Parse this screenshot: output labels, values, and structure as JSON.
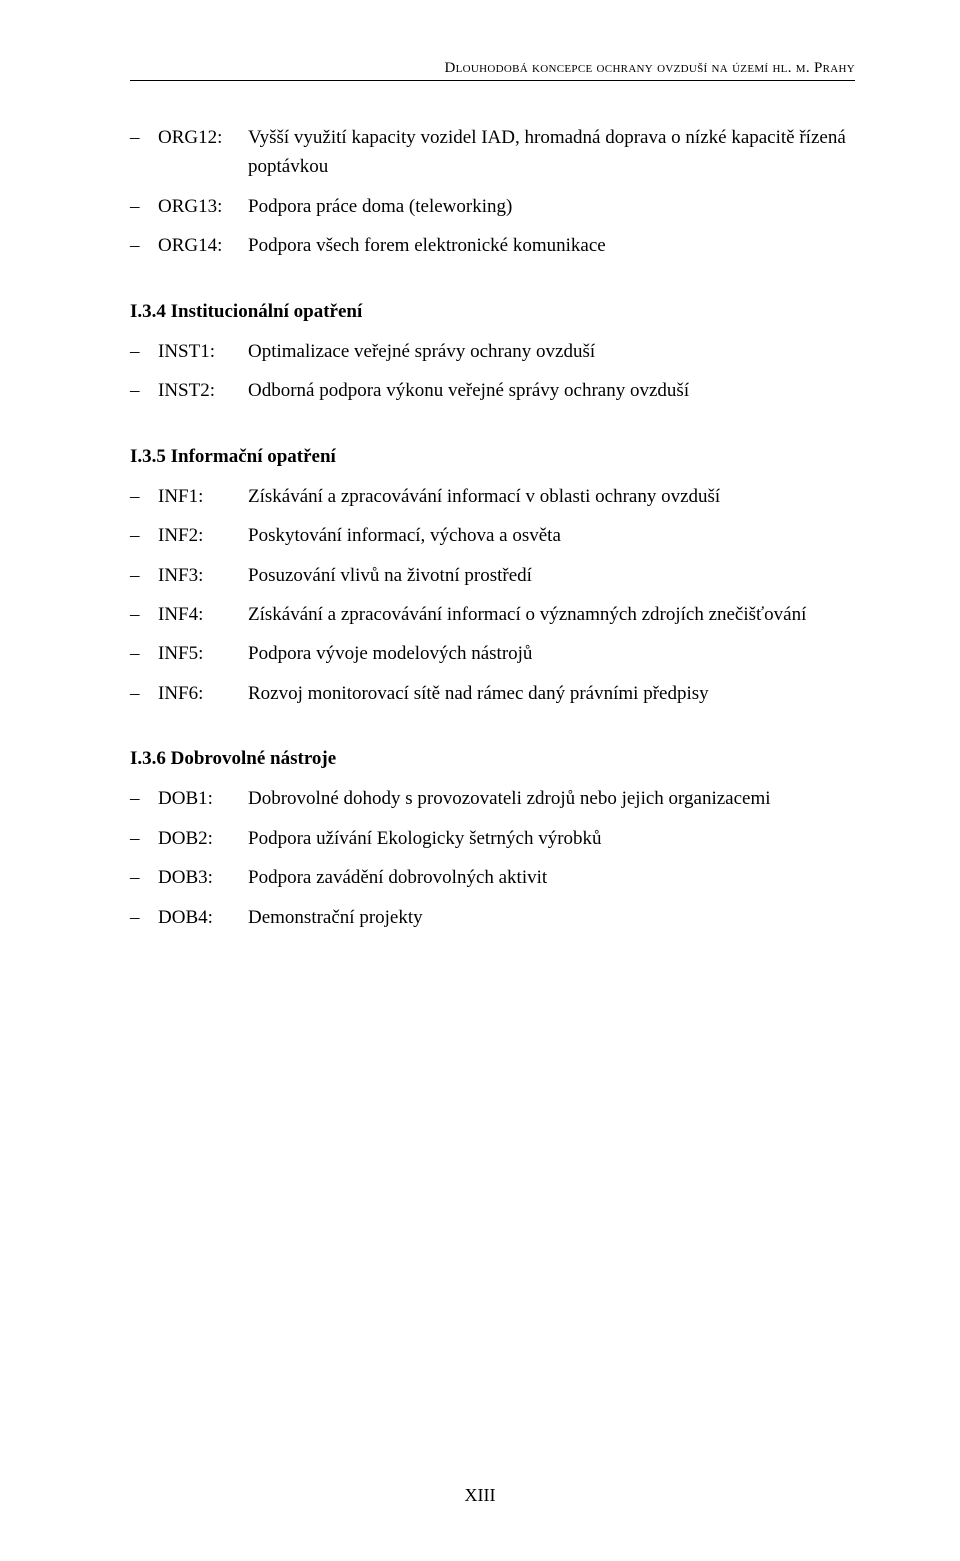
{
  "header": {
    "text": "Dlouhodobá koncepce ochrany ovzduší na území hl. m. Prahy"
  },
  "intro": [
    {
      "code": "ORG12:",
      "desc": "Vyšší využití kapacity vozidel IAD, hromadná doprava o nízké kapacitě řízená poptávkou"
    },
    {
      "code": "ORG13:",
      "desc": "Podpora práce doma (teleworking)"
    },
    {
      "code": "ORG14:",
      "desc": "Podpora všech forem elektronické komunikace"
    }
  ],
  "sections": [
    {
      "heading": "I.3.4  Institucionální opatření",
      "items": [
        {
          "code": "INST1:",
          "desc": "Optimalizace veřejné správy ochrany ovzduší"
        },
        {
          "code": "INST2:",
          "desc": "Odborná podpora výkonu veřejné správy ochrany ovzduší"
        }
      ]
    },
    {
      "heading": "I.3.5  Informační opatření",
      "items": [
        {
          "code": "INF1:",
          "desc": "Získávání a zpracovávání informací v oblasti ochrany ovzduší"
        },
        {
          "code": "INF2:",
          "desc": "Poskytování informací, výchova a osvěta"
        },
        {
          "code": "INF3:",
          "desc": "Posuzování vlivů na životní prostředí"
        },
        {
          "code": "INF4:",
          "desc": "Získávání a zpracovávání informací o významných zdrojích znečišťování"
        },
        {
          "code": "INF5:",
          "desc": "Podpora vývoje modelových nástrojů"
        },
        {
          "code": "INF6:",
          "desc": "Rozvoj monitorovací sítě nad rámec daný právními předpisy"
        }
      ]
    },
    {
      "heading": "I.3.6  Dobrovolné nástroje",
      "items": [
        {
          "code": "DOB1:",
          "desc": "Dobrovolné dohody s provozovateli zdrojů nebo jejich organizacemi"
        },
        {
          "code": "DOB2:",
          "desc": "Podpora užívání Ekologicky šetrných výrobků"
        },
        {
          "code": "DOB3:",
          "desc": "Podpora zavádění dobrovolných aktivit"
        },
        {
          "code": "DOB4:",
          "desc": "Demonstrační projekty"
        }
      ]
    }
  ],
  "footer": {
    "page": "XIII"
  }
}
